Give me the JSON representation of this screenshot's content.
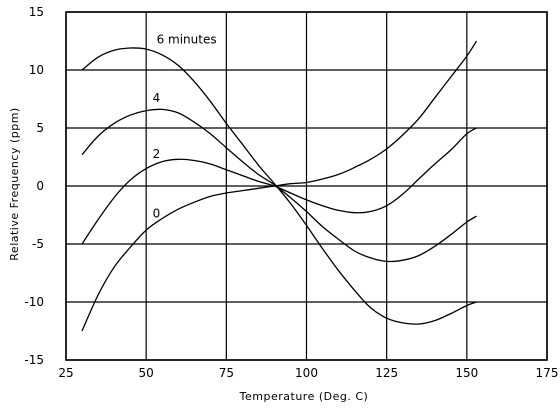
{
  "chart_data": {
    "type": "line",
    "title": "",
    "xlabel": "Temperature (Deg. C)",
    "ylabel": "Relative Frequency (ppm)",
    "xlim": [
      25,
      175
    ],
    "ylim": [
      -15,
      15
    ],
    "xticks": [
      25,
      50,
      75,
      100,
      125,
      150,
      175
    ],
    "yticks": [
      -15,
      -10,
      -5,
      0,
      5,
      10,
      15
    ],
    "grid": true,
    "series": [
      {
        "name": "6 minutes",
        "x": [
          30,
          35,
          40,
          45,
          50,
          55,
          60,
          65,
          70,
          75,
          80,
          85,
          90,
          95,
          100,
          105,
          110,
          115,
          120,
          125,
          130,
          135,
          140,
          145,
          150,
          153
        ],
        "y": [
          10,
          11.1,
          11.7,
          11.9,
          11.8,
          11.3,
          10.4,
          9.0,
          7.3,
          5.4,
          3.6,
          1.8,
          0.2,
          -1.5,
          -3.4,
          -5.4,
          -7.3,
          -9.0,
          -10.5,
          -11.4,
          -11.8,
          -11.9,
          -11.6,
          -11.0,
          -10.3,
          -10.0
        ]
      },
      {
        "name": "4",
        "x": [
          30,
          35,
          40,
          45,
          50,
          55,
          60,
          65,
          70,
          75,
          80,
          85,
          90,
          95,
          100,
          105,
          110,
          115,
          120,
          125,
          130,
          135,
          140,
          145,
          150,
          153
        ],
        "y": [
          2.7,
          4.3,
          5.4,
          6.1,
          6.5,
          6.6,
          6.3,
          5.5,
          4.5,
          3.3,
          2.1,
          1.0,
          0.1,
          -1.0,
          -2.2,
          -3.5,
          -4.6,
          -5.6,
          -6.2,
          -6.5,
          -6.4,
          -6.0,
          -5.2,
          -4.2,
          -3.1,
          -2.6
        ]
      },
      {
        "name": "2",
        "x": [
          30,
          35,
          40,
          45,
          50,
          55,
          60,
          65,
          70,
          75,
          80,
          85,
          90,
          95,
          100,
          105,
          110,
          115,
          120,
          125,
          130,
          135,
          140,
          145,
          150,
          153
        ],
        "y": [
          -5.0,
          -2.9,
          -1.0,
          0.5,
          1.5,
          2.1,
          2.3,
          2.2,
          1.9,
          1.4,
          0.9,
          0.4,
          0.0,
          -0.6,
          -1.2,
          -1.7,
          -2.1,
          -2.3,
          -2.2,
          -1.7,
          -0.7,
          0.6,
          1.9,
          3.1,
          4.5,
          5.0
        ]
      },
      {
        "name": "0",
        "x": [
          30,
          35,
          40,
          45,
          50,
          55,
          60,
          65,
          70,
          75,
          80,
          85,
          90,
          95,
          100,
          105,
          110,
          115,
          120,
          125,
          130,
          135,
          140,
          145,
          150,
          153
        ],
        "y": [
          -12.5,
          -9.4,
          -7.0,
          -5.3,
          -3.8,
          -2.8,
          -2.0,
          -1.4,
          -0.9,
          -0.6,
          -0.4,
          -0.2,
          0.0,
          0.2,
          0.3,
          0.6,
          1.0,
          1.6,
          2.3,
          3.2,
          4.4,
          5.8,
          7.6,
          9.4,
          11.2,
          12.5
        ]
      }
    ]
  }
}
